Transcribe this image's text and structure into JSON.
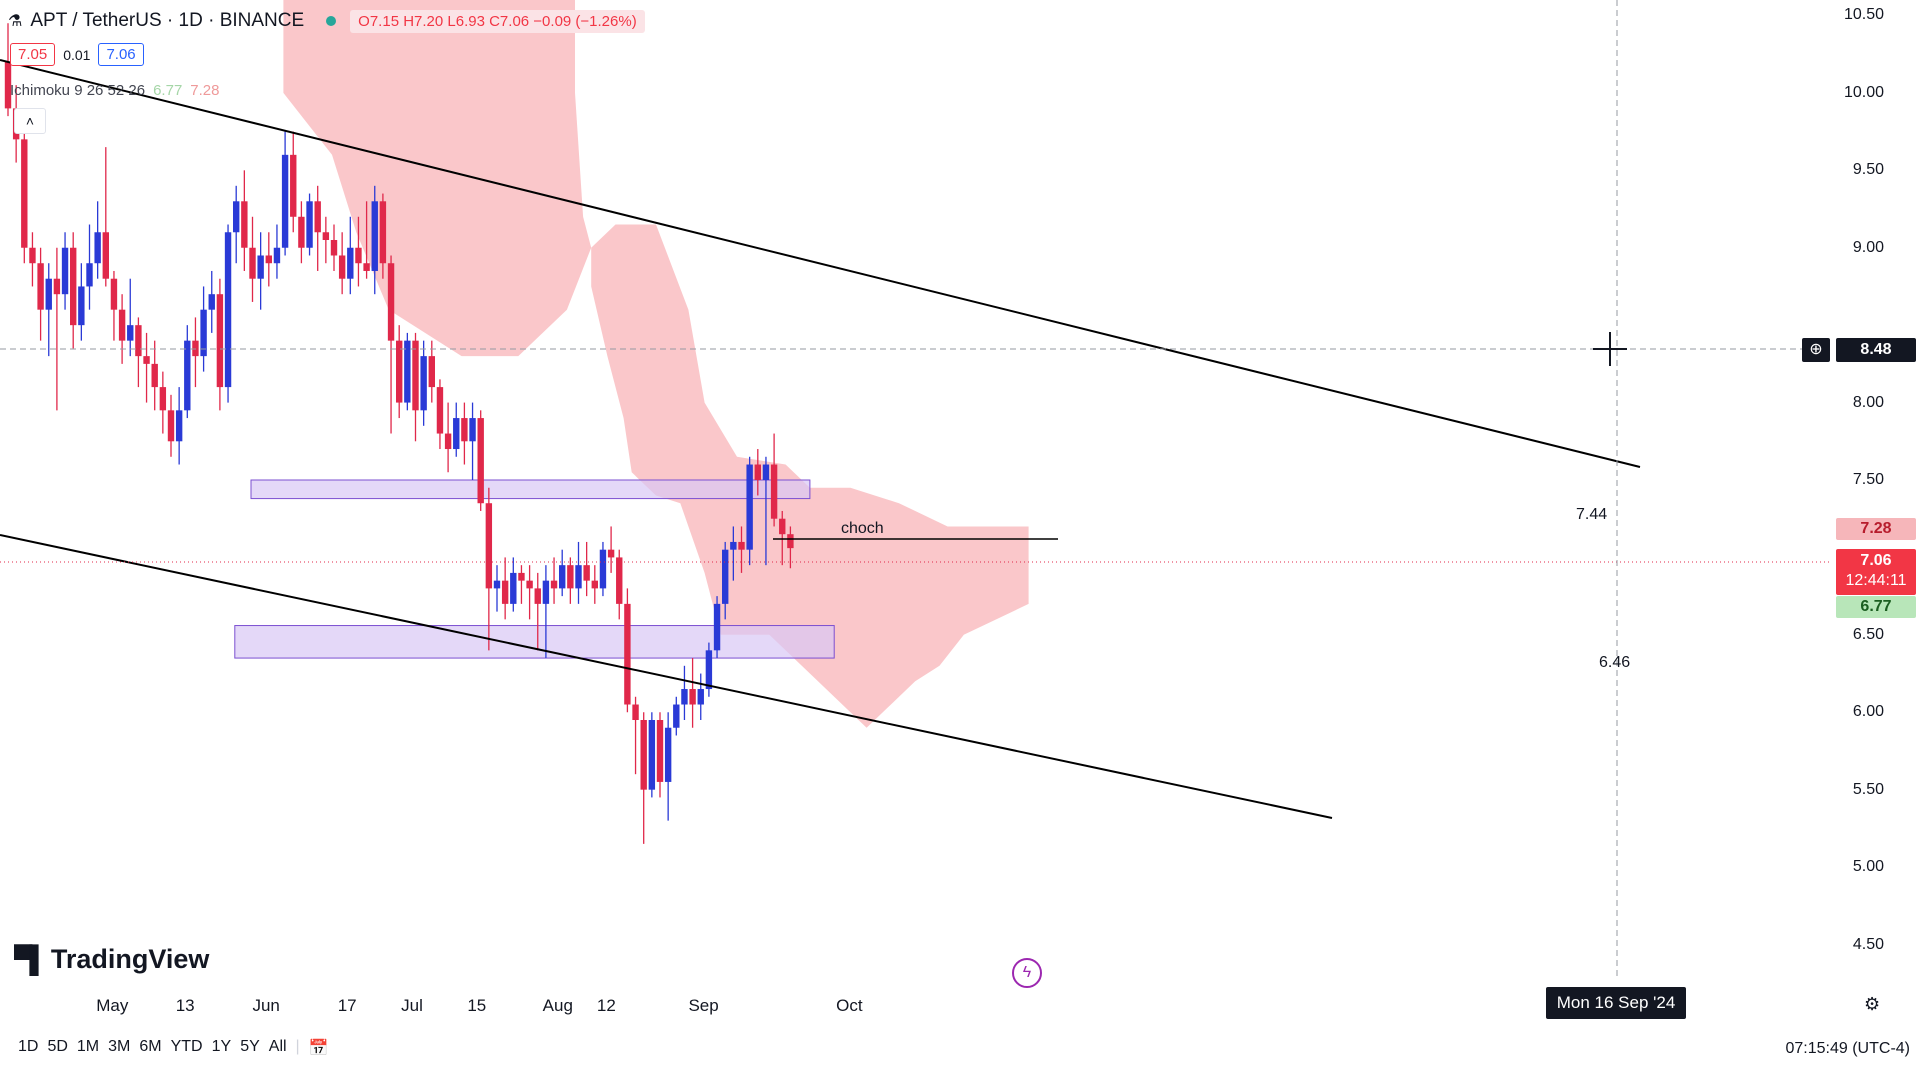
{
  "header": {
    "symbol": "APT / TetherUS · 1D · BINANCE",
    "ohlc": "O7.15  H7.20  L6.93  C7.06  −0.09 (−1.26%)",
    "bid": "7.05",
    "spread": "0.01",
    "ask": "7.06",
    "indicator_name": "Ichimoku 9 26 52 26",
    "indicator_v1": "6.77",
    "indicator_v2": "7.28"
  },
  "colors": {
    "up": "#2a3ad6",
    "down": "#e0284a",
    "cloud": "#f7a9ad",
    "zone": "#d9c8f5",
    "zone_border": "#7b4fd1"
  },
  "price_badges": {
    "crosshair": "8.48",
    "kijun": "7.28",
    "last": "7.06",
    "countdown": "12:44:11",
    "tenkan": "6.77"
  },
  "zones": [
    {
      "label": "7.44",
      "low": 7.38,
      "high": 7.5,
      "start": 30,
      "end": 99
    },
    {
      "label": "6.46",
      "low": 6.35,
      "high": 6.56,
      "start": 28,
      "end": 102
    }
  ],
  "annotations": {
    "choch": "choch"
  },
  "chart_data": {
    "type": "candlestick",
    "symbol": "APT / TetherUS",
    "ylim": [
      4.4,
      10.6
    ],
    "y_ticks": [
      "10.50",
      "10.00",
      "9.50",
      "9.00",
      "8.00",
      "7.50",
      "6.50",
      "6.00",
      "5.50",
      "5.00",
      "4.50"
    ],
    "x_ticks": [
      {
        "label": "May",
        "i": 3
      },
      {
        "label": "13",
        "i": 12
      },
      {
        "label": "Jun",
        "i": 22
      },
      {
        "label": "17",
        "i": 32
      },
      {
        "label": "Jul",
        "i": 40
      },
      {
        "label": "15",
        "i": 48
      },
      {
        "label": "Aug",
        "i": 58
      },
      {
        "label": "12",
        "i": 64
      },
      {
        "label": "Sep",
        "i": 76
      },
      {
        "label": "Oct",
        "i": 94
      }
    ],
    "crosshair_date": "Mon 16 Sep '24",
    "candles": [
      [
        10.2,
        9.9,
        10.45,
        9.85
      ],
      [
        9.9,
        9.7,
        10.05,
        9.55
      ],
      [
        9.7,
        9.0,
        9.75,
        8.9
      ],
      [
        9.0,
        8.9,
        9.1,
        8.75
      ],
      [
        8.9,
        8.6,
        9.0,
        8.4
      ],
      [
        8.6,
        8.8,
        8.9,
        8.3
      ],
      [
        8.8,
        8.7,
        9.0,
        7.95
      ],
      [
        8.7,
        9.0,
        9.1,
        8.6
      ],
      [
        9.0,
        8.5,
        9.1,
        8.35
      ],
      [
        8.5,
        8.75,
        8.9,
        8.4
      ],
      [
        8.75,
        8.9,
        9.15,
        8.6
      ],
      [
        8.9,
        9.1,
        9.3,
        8.8
      ],
      [
        9.1,
        8.8,
        9.65,
        8.75
      ],
      [
        8.8,
        8.6,
        8.85,
        8.4
      ],
      [
        8.6,
        8.4,
        8.7,
        8.25
      ],
      [
        8.4,
        8.5,
        8.8,
        8.3
      ],
      [
        8.5,
        8.3,
        8.55,
        8.1
      ],
      [
        8.3,
        8.25,
        8.45,
        8.0
      ],
      [
        8.25,
        8.1,
        8.4,
        7.95
      ],
      [
        8.1,
        7.95,
        8.2,
        7.8
      ],
      [
        7.95,
        7.75,
        8.05,
        7.65
      ],
      [
        7.75,
        7.95,
        8.1,
        7.6
      ],
      [
        7.95,
        8.4,
        8.5,
        7.9
      ],
      [
        8.4,
        8.3,
        8.55,
        8.1
      ],
      [
        8.3,
        8.6,
        8.75,
        8.2
      ],
      [
        8.6,
        8.7,
        8.85,
        8.45
      ],
      [
        8.7,
        8.1,
        8.8,
        7.95
      ],
      [
        8.1,
        9.1,
        9.15,
        8.0
      ],
      [
        9.1,
        9.3,
        9.4,
        8.9
      ],
      [
        9.3,
        9.0,
        9.5,
        8.85
      ],
      [
        9.0,
        8.8,
        9.2,
        8.65
      ],
      [
        8.8,
        8.95,
        9.1,
        8.6
      ],
      [
        8.95,
        8.9,
        9.1,
        8.75
      ],
      [
        8.9,
        9.0,
        9.15,
        8.8
      ],
      [
        9.0,
        9.6,
        9.75,
        8.95
      ],
      [
        9.6,
        9.2,
        9.75,
        9.1
      ],
      [
        9.2,
        9.0,
        9.3,
        8.9
      ],
      [
        9.0,
        9.3,
        9.35,
        8.95
      ],
      [
        9.3,
        9.1,
        9.4,
        8.85
      ],
      [
        9.1,
        9.05,
        9.2,
        8.9
      ],
      [
        9.05,
        8.95,
        9.15,
        8.85
      ],
      [
        8.95,
        8.8,
        9.1,
        8.7
      ],
      [
        8.8,
        9.0,
        9.2,
        8.7
      ],
      [
        9.0,
        8.9,
        9.2,
        8.75
      ],
      [
        8.9,
        8.85,
        9.3,
        8.8
      ],
      [
        8.85,
        9.3,
        9.4,
        8.7
      ],
      [
        9.3,
        8.9,
        9.35,
        8.8
      ],
      [
        8.9,
        8.4,
        8.95,
        7.8
      ],
      [
        8.4,
        8.0,
        8.5,
        7.9
      ],
      [
        8.0,
        8.4,
        8.45,
        7.95
      ],
      [
        8.4,
        7.95,
        8.45,
        7.75
      ],
      [
        7.95,
        8.3,
        8.4,
        7.85
      ],
      [
        8.3,
        8.1,
        8.4,
        8.0
      ],
      [
        8.1,
        7.8,
        8.15,
        7.7
      ],
      [
        7.8,
        7.7,
        8.0,
        7.55
      ],
      [
        7.7,
        7.9,
        8.0,
        7.65
      ],
      [
        7.9,
        7.75,
        8.0,
        7.6
      ],
      [
        7.75,
        7.9,
        8.0,
        7.5
      ],
      [
        7.9,
        7.35,
        7.95,
        7.3
      ],
      [
        7.35,
        6.8,
        7.45,
        6.4
      ],
      [
        6.8,
        6.85,
        6.95,
        6.65
      ],
      [
        6.85,
        6.7,
        7.0,
        6.6
      ],
      [
        6.7,
        6.9,
        7.0,
        6.65
      ],
      [
        6.9,
        6.85,
        6.95,
        6.7
      ],
      [
        6.85,
        6.8,
        6.95,
        6.6
      ],
      [
        6.8,
        6.7,
        6.9,
        6.4
      ],
      [
        6.7,
        6.85,
        6.95,
        6.35
      ],
      [
        6.85,
        6.8,
        7.0,
        6.7
      ],
      [
        6.8,
        6.95,
        7.05,
        6.75
      ],
      [
        6.95,
        6.8,
        7.0,
        6.7
      ],
      [
        6.8,
        6.95,
        7.1,
        6.7
      ],
      [
        6.95,
        6.85,
        7.1,
        6.75
      ],
      [
        6.85,
        6.8,
        6.95,
        6.7
      ],
      [
        6.8,
        7.05,
        7.1,
        6.75
      ],
      [
        7.05,
        7.0,
        7.2,
        6.9
      ],
      [
        7.0,
        6.7,
        7.05,
        6.6
      ],
      [
        6.7,
        6.05,
        6.8,
        6.0
      ],
      [
        6.05,
        5.95,
        6.1,
        5.6
      ],
      [
        5.95,
        5.5,
        6.0,
        5.15
      ],
      [
        5.5,
        5.95,
        6.0,
        5.45
      ],
      [
        5.95,
        5.55,
        6.0,
        5.45
      ],
      [
        5.55,
        5.9,
        6.0,
        5.3
      ],
      [
        5.9,
        6.05,
        6.1,
        5.85
      ],
      [
        6.05,
        6.15,
        6.3,
        5.95
      ],
      [
        6.15,
        6.05,
        6.35,
        5.9
      ],
      [
        6.05,
        6.15,
        6.25,
        5.95
      ],
      [
        6.15,
        6.4,
        6.45,
        6.1
      ],
      [
        6.4,
        6.7,
        6.75,
        6.35
      ],
      [
        6.7,
        7.05,
        7.1,
        6.6
      ],
      [
        7.05,
        7.1,
        7.2,
        6.85
      ],
      [
        7.1,
        7.05,
        7.2,
        6.9
      ],
      [
        7.05,
        7.6,
        7.65,
        6.95
      ],
      [
        7.6,
        7.5,
        7.7,
        7.4
      ],
      [
        7.5,
        7.6,
        7.65,
        6.95
      ],
      [
        7.6,
        7.25,
        7.8,
        7.2
      ],
      [
        7.25,
        7.15,
        7.3,
        6.95
      ],
      [
        7.15,
        7.06,
        7.2,
        6.93
      ]
    ]
  }
}
